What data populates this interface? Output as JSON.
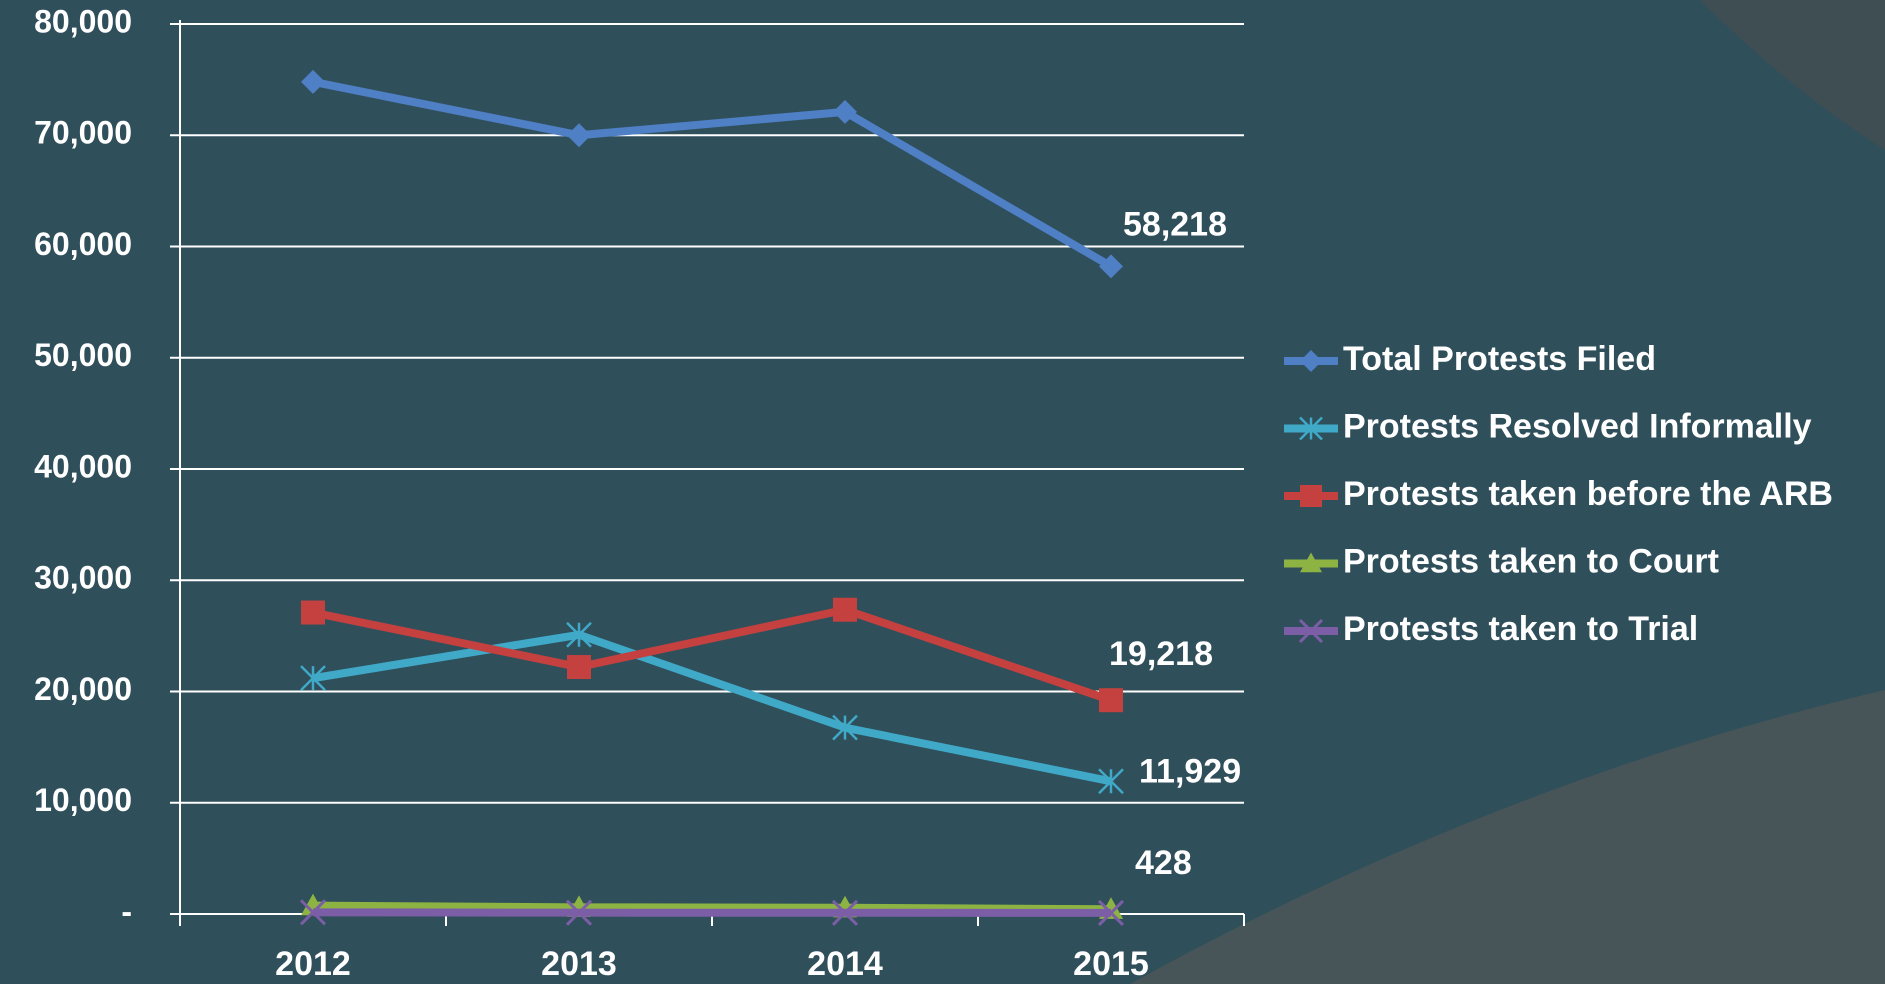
{
  "chart_data": {
    "type": "line",
    "categories": [
      "2012",
      "2013",
      "2014",
      "2015"
    ],
    "series": [
      {
        "name": "Total Protests Filed",
        "color": "#4f7fc4",
        "marker": "diamond",
        "values": [
          74800,
          70000,
          72100,
          58218
        ],
        "value_labels": [
          null,
          null,
          null,
          "58,218"
        ]
      },
      {
        "name": "Protests Resolved Informally",
        "color": "#3fa9c7",
        "marker": "asterisk",
        "values": [
          21200,
          25100,
          16750,
          11929
        ],
        "value_labels": [
          null,
          null,
          null,
          "11,929"
        ]
      },
      {
        "name": "Protests taken before the ARB",
        "color": "#c4413f",
        "marker": "square",
        "values": [
          27100,
          22200,
          27350,
          19218
        ],
        "value_labels": [
          null,
          null,
          null,
          "19,218"
        ]
      },
      {
        "name": "Protests taken to Court",
        "color": "#8db443",
        "marker": "triangle",
        "values": [
          750,
          600,
          560,
          428
        ],
        "value_labels": [
          null,
          null,
          null,
          "428"
        ]
      },
      {
        "name": "Protests taken to Trial",
        "color": "#7b5ea6",
        "marker": "x",
        "values": [
          150,
          120,
          110,
          100
        ]
      }
    ],
    "ylim": [
      0,
      80000
    ],
    "yticks": [
      {
        "value": 0,
        "label": "-"
      },
      {
        "value": 10000,
        "label": "10,000"
      },
      {
        "value": 20000,
        "label": "20,000"
      },
      {
        "value": 30000,
        "label": "30,000"
      },
      {
        "value": 40000,
        "label": "40,000"
      },
      {
        "value": 50000,
        "label": "50,000"
      },
      {
        "value": 60000,
        "label": "60,000"
      },
      {
        "value": 70000,
        "label": "70,000"
      },
      {
        "value": 80000,
        "label": "80,000"
      }
    ],
    "grid": true,
    "legend": "right"
  }
}
